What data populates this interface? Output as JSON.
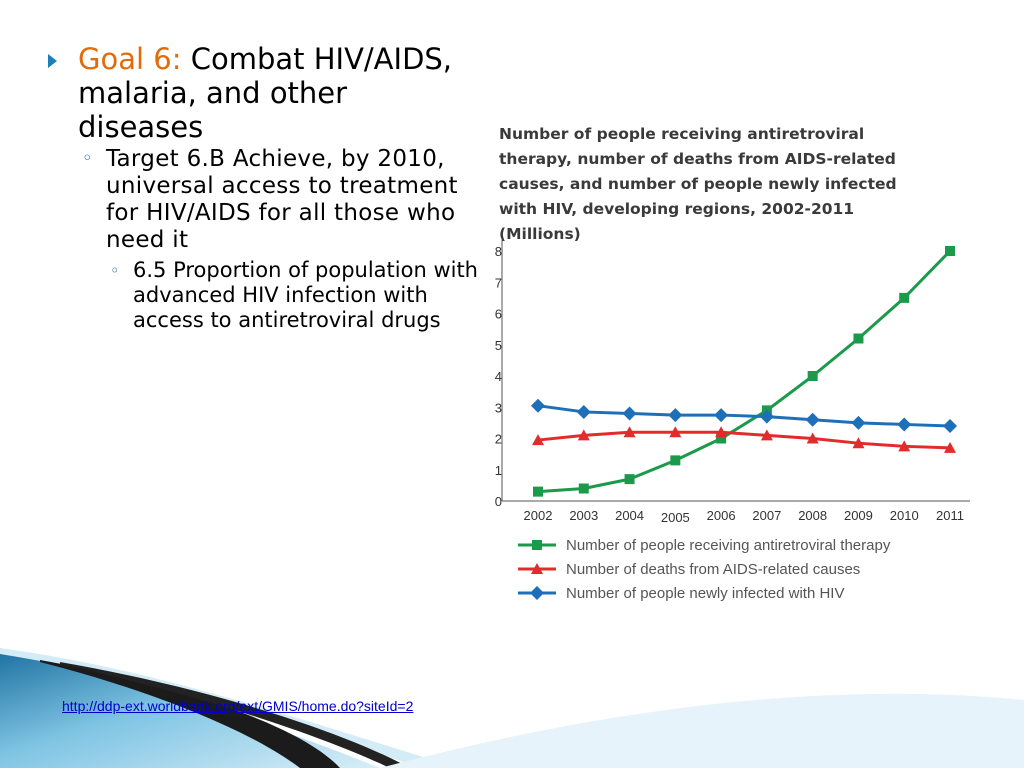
{
  "slide": {
    "goal_label": "Goal 6:",
    "goal_text": "Combat HIV/AIDS, malaria, and other diseases",
    "target_label": "Target 6.B",
    "target_text": " Achieve, by 2010, universal access to treatment for HIV/AIDS for all those who need it",
    "indicator_text": "6.5 Proportion of population with advanced HIV infection with access to antiretroviral drugs",
    "link_text": "http://ddp-ext.worldbank.org/ext/GMIS/home.do?siteId=2"
  },
  "chart_data": {
    "type": "line",
    "title": "Number of people receiving antiretroviral therapy, number of deaths from AIDS-related causes, and number of people newly infected with HIV, developing regions, 2002-2011 (Millions)",
    "x": [
      "2002",
      "2003",
      "2004",
      "2005",
      "2006",
      "2007",
      "2008",
      "2009",
      "2010",
      "2011"
    ],
    "ylim": [
      0,
      8
    ],
    "yticks": [
      "0",
      "1",
      "2",
      "3",
      "4",
      "5",
      "6",
      "7",
      "8"
    ],
    "series": [
      {
        "name": "Number of people receiving antiretroviral therapy",
        "color": "#1a9a4a",
        "marker": "square",
        "values": [
          0.3,
          0.4,
          0.7,
          1.3,
          2.0,
          2.9,
          4.0,
          5.2,
          6.5,
          8.0
        ]
      },
      {
        "name": "Number of deaths from AIDS-related causes",
        "color": "#e32b2b",
        "marker": "triangle",
        "values": [
          1.95,
          2.1,
          2.2,
          2.2,
          2.2,
          2.1,
          2.0,
          1.85,
          1.75,
          1.7
        ]
      },
      {
        "name": "Number of people newly infected with HIV",
        "color": "#1d6fb8",
        "marker": "diamond",
        "values": [
          3.05,
          2.85,
          2.8,
          2.75,
          2.75,
          2.7,
          2.6,
          2.5,
          2.45,
          2.4
        ]
      }
    ],
    "legend_position": "bottom"
  }
}
